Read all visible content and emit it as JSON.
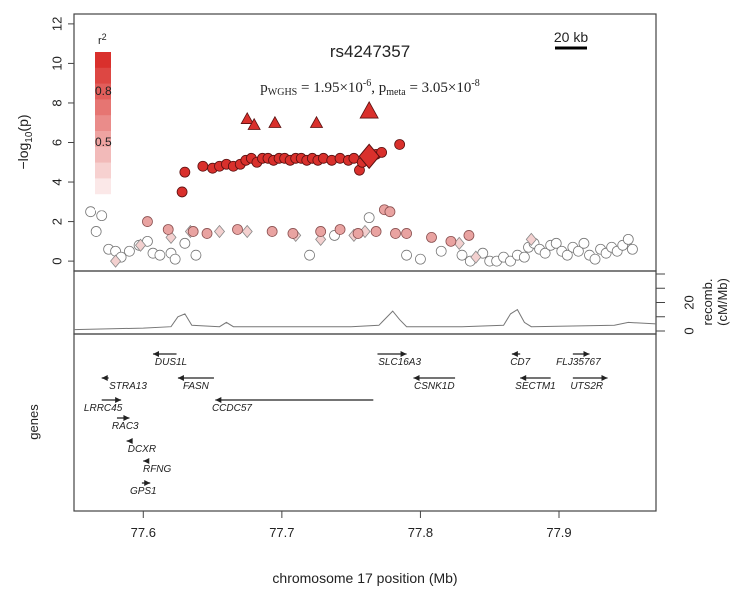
{
  "chart_data": {
    "type": "scatter",
    "title": "rs4247357",
    "subtitle_parts": {
      "p1_main": "p",
      "p1_sub": "WGHS",
      "p1_val": " = 1.95×10",
      "p1_exp": "-6",
      "sep": ", ",
      "p2_main": "p",
      "p2_sub": "meta",
      "p2_val": " = 3.05×10",
      "p2_exp": "-8"
    },
    "xlabel": "chromosome 17 position (Mb)",
    "ylabel_top": "−log",
    "ylabel_sub": "10",
    "ylabel_tail": "(p)",
    "recomb_label_1": "recomb.",
    "recomb_label_2": "(cM/Mb)",
    "genes_label": "genes",
    "scalebar_label": "20 kb",
    "xlim": [
      77.55,
      77.97
    ],
    "ylim": [
      -0.5,
      12.5
    ],
    "x_ticks": [
      "77.6",
      "77.7",
      "77.8",
      "77.9"
    ],
    "x_tick_values": [
      77.6,
      77.7,
      77.8,
      77.9
    ],
    "y_ticks": [
      "0",
      "2",
      "4",
      "6",
      "8",
      "10",
      "12"
    ],
    "recomb_ticks": [
      "0",
      "20"
    ],
    "recomb_ylim": [
      0,
      40
    ],
    "legend": {
      "labels": [
        "r",
        "0.8",
        "0.5"
      ],
      "r_label": "2"
    },
    "lead_snp": {
      "x": 77.763,
      "y": 5.3
    },
    "lead_meta": {
      "x": 77.763,
      "y": 7.6
    },
    "triangles": [
      {
        "x": 77.675,
        "y": 7.2
      },
      {
        "x": 77.68,
        "y": 6.9
      },
      {
        "x": 77.695,
        "y": 7.0
      },
      {
        "x": 77.725,
        "y": 7.0
      },
      {
        "x": 77.763,
        "y": 7.6
      }
    ],
    "high_points": [
      {
        "x": 77.628,
        "y": 3.5
      },
      {
        "x": 77.63,
        "y": 4.5
      },
      {
        "x": 77.643,
        "y": 4.8
      },
      {
        "x": 77.65,
        "y": 4.7
      },
      {
        "x": 77.655,
        "y": 4.8
      },
      {
        "x": 77.66,
        "y": 4.9
      },
      {
        "x": 77.665,
        "y": 4.8
      },
      {
        "x": 77.67,
        "y": 4.9
      },
      {
        "x": 77.674,
        "y": 5.1
      },
      {
        "x": 77.678,
        "y": 5.2
      },
      {
        "x": 77.682,
        "y": 5.0
      },
      {
        "x": 77.686,
        "y": 5.2
      },
      {
        "x": 77.69,
        "y": 5.2
      },
      {
        "x": 77.694,
        "y": 5.1
      },
      {
        "x": 77.698,
        "y": 5.2
      },
      {
        "x": 77.702,
        "y": 5.2
      },
      {
        "x": 77.706,
        "y": 5.1
      },
      {
        "x": 77.71,
        "y": 5.2
      },
      {
        "x": 77.714,
        "y": 5.2
      },
      {
        "x": 77.718,
        "y": 5.1
      },
      {
        "x": 77.722,
        "y": 5.2
      },
      {
        "x": 77.726,
        "y": 5.1
      },
      {
        "x": 77.73,
        "y": 5.2
      },
      {
        "x": 77.736,
        "y": 5.1
      },
      {
        "x": 77.742,
        "y": 5.2
      },
      {
        "x": 77.748,
        "y": 5.1
      },
      {
        "x": 77.752,
        "y": 5.2
      },
      {
        "x": 77.756,
        "y": 4.6
      },
      {
        "x": 77.758,
        "y": 5.0
      },
      {
        "x": 77.768,
        "y": 5.4
      },
      {
        "x": 77.772,
        "y": 5.5
      },
      {
        "x": 77.785,
        "y": 5.9
      }
    ],
    "mid_points": [
      {
        "x": 77.603,
        "y": 2.0
      },
      {
        "x": 77.618,
        "y": 1.6
      },
      {
        "x": 77.636,
        "y": 1.5
      },
      {
        "x": 77.646,
        "y": 1.4
      },
      {
        "x": 77.668,
        "y": 1.6
      },
      {
        "x": 77.693,
        "y": 1.5
      },
      {
        "x": 77.708,
        "y": 1.4
      },
      {
        "x": 77.728,
        "y": 1.5
      },
      {
        "x": 77.742,
        "y": 1.6
      },
      {
        "x": 77.755,
        "y": 1.4
      },
      {
        "x": 77.768,
        "y": 1.5
      },
      {
        "x": 77.774,
        "y": 2.6
      },
      {
        "x": 77.778,
        "y": 2.5
      },
      {
        "x": 77.782,
        "y": 1.4
      },
      {
        "x": 77.79,
        "y": 1.4
      },
      {
        "x": 77.808,
        "y": 1.2
      },
      {
        "x": 77.822,
        "y": 1.0
      },
      {
        "x": 77.835,
        "y": 1.3
      }
    ],
    "low_points": [
      {
        "x": 77.562,
        "y": 2.5
      },
      {
        "x": 77.566,
        "y": 1.5
      },
      {
        "x": 77.57,
        "y": 2.3
      },
      {
        "x": 77.575,
        "y": 0.6
      },
      {
        "x": 77.58,
        "y": 0.5
      },
      {
        "x": 77.584,
        "y": 0.2
      },
      {
        "x": 77.59,
        "y": 0.5
      },
      {
        "x": 77.597,
        "y": 0.8
      },
      {
        "x": 77.603,
        "y": 1.0
      },
      {
        "x": 77.607,
        "y": 0.4
      },
      {
        "x": 77.612,
        "y": 0.3
      },
      {
        "x": 77.62,
        "y": 0.4
      },
      {
        "x": 77.623,
        "y": 0.1
      },
      {
        "x": 77.63,
        "y": 0.9
      },
      {
        "x": 77.638,
        "y": 0.3
      },
      {
        "x": 77.72,
        "y": 0.3
      },
      {
        "x": 77.738,
        "y": 1.3
      },
      {
        "x": 77.763,
        "y": 2.2
      },
      {
        "x": 77.79,
        "y": 0.3
      },
      {
        "x": 77.8,
        "y": 0.1
      },
      {
        "x": 77.815,
        "y": 0.5
      },
      {
        "x": 77.83,
        "y": 0.3
      },
      {
        "x": 77.836,
        "y": 0.0
      },
      {
        "x": 77.845,
        "y": 0.4
      },
      {
        "x": 77.85,
        "y": 0.0
      },
      {
        "x": 77.855,
        "y": 0.0
      },
      {
        "x": 77.86,
        "y": 0.2
      },
      {
        "x": 77.865,
        "y": 0.0
      },
      {
        "x": 77.87,
        "y": 0.3
      },
      {
        "x": 77.875,
        "y": 0.2
      },
      {
        "x": 77.878,
        "y": 0.7
      },
      {
        "x": 77.882,
        "y": 0.9
      },
      {
        "x": 77.886,
        "y": 0.6
      },
      {
        "x": 77.89,
        "y": 0.4
      },
      {
        "x": 77.894,
        "y": 0.8
      },
      {
        "x": 77.898,
        "y": 0.9
      },
      {
        "x": 77.902,
        "y": 0.5
      },
      {
        "x": 77.906,
        "y": 0.3
      },
      {
        "x": 77.91,
        "y": 0.7
      },
      {
        "x": 77.914,
        "y": 0.5
      },
      {
        "x": 77.918,
        "y": 0.9
      },
      {
        "x": 77.922,
        "y": 0.3
      },
      {
        "x": 77.926,
        "y": 0.1
      },
      {
        "x": 77.93,
        "y": 0.6
      },
      {
        "x": 77.934,
        "y": 0.4
      },
      {
        "x": 77.938,
        "y": 0.7
      },
      {
        "x": 77.942,
        "y": 0.5
      },
      {
        "x": 77.946,
        "y": 0.8
      },
      {
        "x": 77.95,
        "y": 1.1
      },
      {
        "x": 77.953,
        "y": 0.6
      }
    ],
    "diamonds_low": [
      {
        "x": 77.58,
        "y": 0.0
      },
      {
        "x": 77.598,
        "y": 0.8
      },
      {
        "x": 77.62,
        "y": 1.2
      },
      {
        "x": 77.634,
        "y": 1.5
      },
      {
        "x": 77.655,
        "y": 1.5
      },
      {
        "x": 77.675,
        "y": 1.5
      },
      {
        "x": 77.71,
        "y": 1.3
      },
      {
        "x": 77.728,
        "y": 1.1
      },
      {
        "x": 77.752,
        "y": 1.3
      },
      {
        "x": 77.76,
        "y": 1.5
      },
      {
        "x": 77.828,
        "y": 0.9
      },
      {
        "x": 77.84,
        "y": 0.2
      },
      {
        "x": 77.88,
        "y": 1.1
      }
    ],
    "recomb_line": [
      [
        77.55,
        1
      ],
      [
        77.6,
        2
      ],
      [
        77.62,
        3
      ],
      [
        77.625,
        10
      ],
      [
        77.63,
        12
      ],
      [
        77.635,
        4
      ],
      [
        77.655,
        3
      ],
      [
        77.66,
        6
      ],
      [
        77.665,
        3
      ],
      [
        77.75,
        3
      ],
      [
        77.77,
        4
      ],
      [
        77.78,
        14
      ],
      [
        77.785,
        8
      ],
      [
        77.79,
        3
      ],
      [
        77.83,
        3
      ],
      [
        77.86,
        4
      ],
      [
        77.865,
        12
      ],
      [
        77.87,
        15
      ],
      [
        77.875,
        6
      ],
      [
        77.88,
        3
      ],
      [
        77.94,
        4
      ],
      [
        77.95,
        6
      ],
      [
        77.97,
        5
      ]
    ],
    "genes": [
      {
        "name": "DUS1L",
        "start": 77.607,
        "end": 77.624,
        "dir": "left",
        "row": 0,
        "label_x": 77.62
      },
      {
        "name": "SLC16A3",
        "start": 77.769,
        "end": 77.79,
        "dir": "right",
        "row": 0,
        "label_x": 77.785
      },
      {
        "name": "CD7",
        "start": 77.866,
        "end": 77.872,
        "dir": "left",
        "row": 0,
        "label_x": 77.872
      },
      {
        "name": "FLJ35767",
        "start": 77.91,
        "end": 77.922,
        "dir": "right",
        "row": 0,
        "label_x": 77.914
      },
      {
        "name": "STRA13",
        "start": 77.57,
        "end": 77.575,
        "dir": "left",
        "row": 1,
        "label_x": 77.589
      },
      {
        "name": "FASN",
        "start": 77.625,
        "end": 77.651,
        "dir": "left",
        "row": 1,
        "label_x": 77.638
      },
      {
        "name": "CSNK1D",
        "start": 77.795,
        "end": 77.825,
        "dir": "left",
        "row": 1,
        "label_x": 77.81
      },
      {
        "name": "SECTM1",
        "start": 77.872,
        "end": 77.894,
        "dir": "left",
        "row": 1,
        "label_x": 77.883
      },
      {
        "name": "UTS2R",
        "start": 77.91,
        "end": 77.935,
        "dir": "right",
        "row": 1,
        "label_x": 77.92
      },
      {
        "name": "LRRC45",
        "start": 77.57,
        "end": 77.584,
        "dir": "right",
        "row": 2,
        "label_x": 77.571
      },
      {
        "name": "CCDC57",
        "start": 77.652,
        "end": 77.766,
        "dir": "left",
        "row": 2,
        "label_x": 77.664
      },
      {
        "name": "RAC3",
        "start": 77.581,
        "end": 77.59,
        "dir": "right",
        "row": 3,
        "label_x": 77.587
      },
      {
        "name": "DCXR",
        "start": 77.588,
        "end": 77.592,
        "dir": "left",
        "row": 4,
        "label_x": 77.599
      },
      {
        "name": "RFNG",
        "start": 77.6,
        "end": 77.603,
        "dir": "left",
        "row": 5,
        "label_x": 77.61
      },
      {
        "name": "GPS1",
        "start": 77.599,
        "end": 77.605,
        "dir": "right",
        "row": 6,
        "label_x": 77.6
      }
    ]
  }
}
